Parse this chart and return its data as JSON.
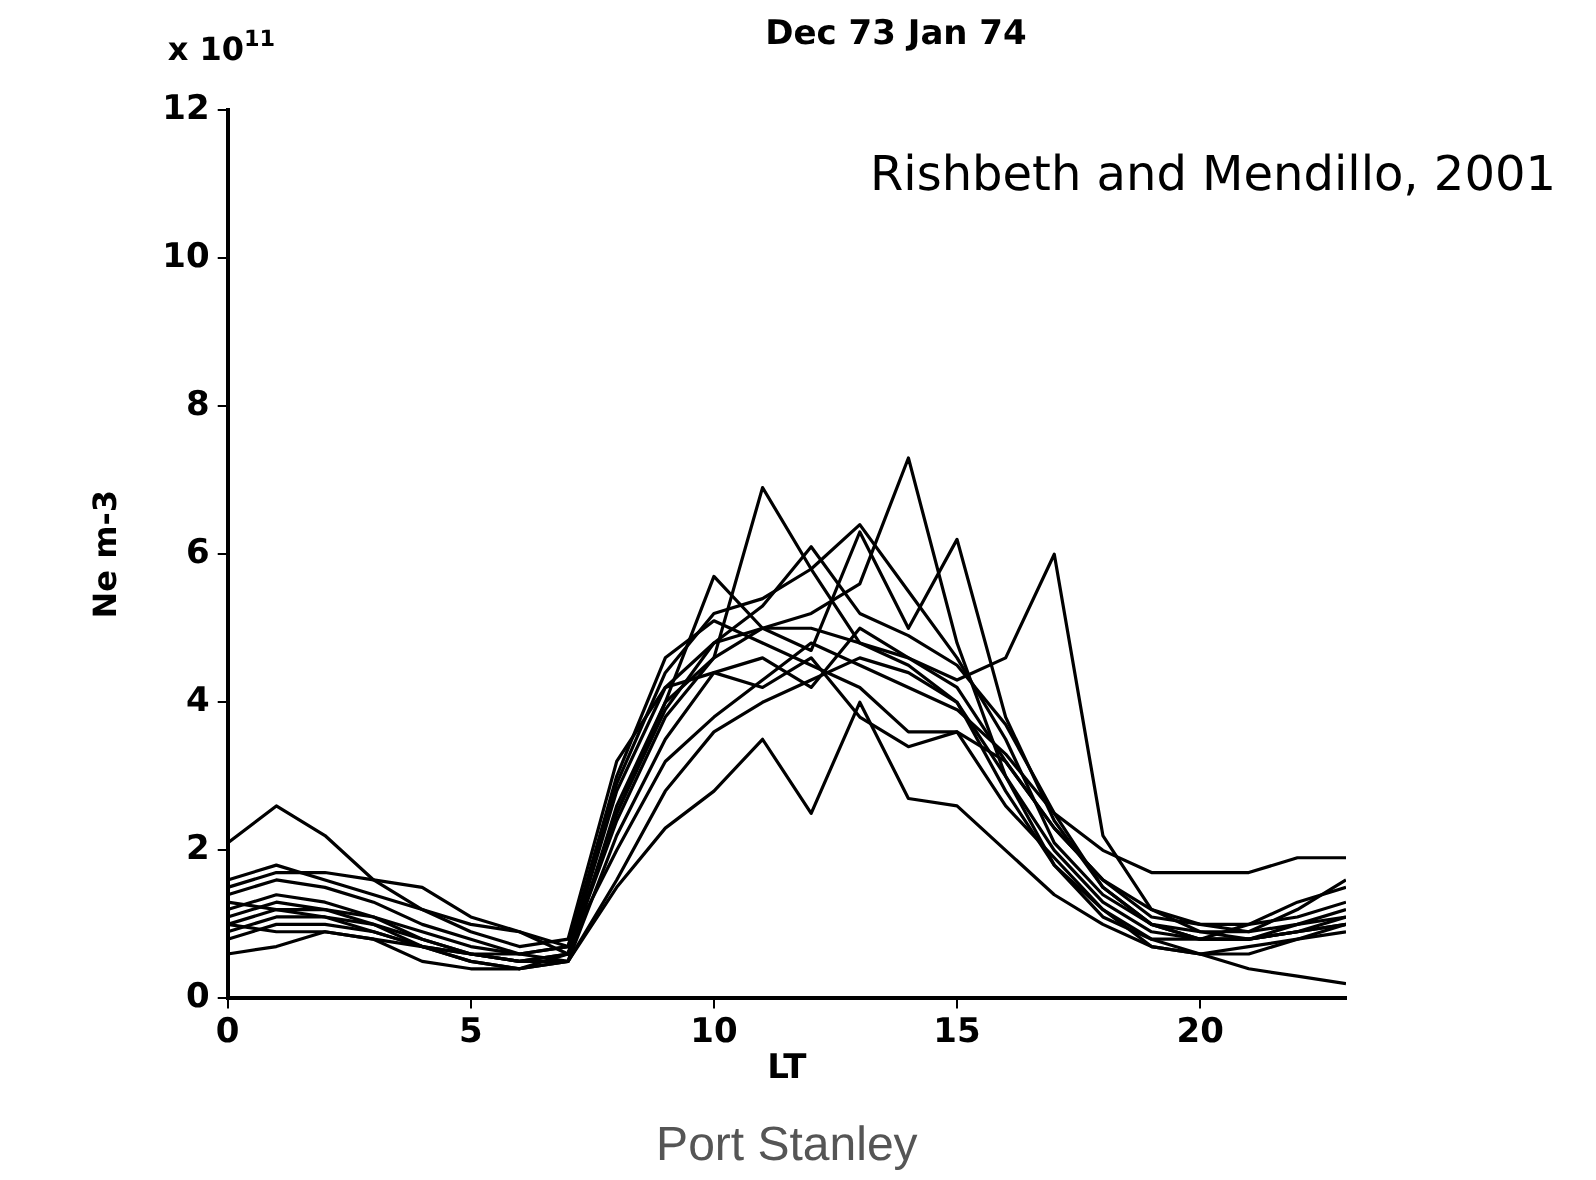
{
  "chart_data": {
    "type": "line",
    "title": "Dec 73 Jan 74",
    "xlabel": "LT",
    "ylabel": "Ne m-3",
    "annotations": [
      "x 10$^{11}$",
      "Rishbeth and Mendillo, 2001",
      "Port Stanley"
    ],
    "x": [
      0,
      1,
      2,
      3,
      4,
      5,
      6,
      7,
      8,
      9,
      10,
      11,
      12,
      13,
      14,
      15,
      16,
      17,
      18,
      19,
      20,
      21,
      22,
      23
    ],
    "xlim": [
      0,
      23
    ],
    "xticks": [
      0,
      5,
      10,
      15,
      20
    ],
    "ylim": [
      0,
      12
    ],
    "yticks": [
      0,
      2,
      4,
      6,
      8,
      10,
      12
    ],
    "grid": false,
    "legend": false,
    "marker": "none",
    "line_style": "solid",
    "series": [
      {
        "color": "#000000",
        "values": [
          2.1,
          2.6,
          2.2,
          1.6,
          1.2,
          1.0,
          0.9,
          0.6,
          2.5,
          4.0,
          4.6,
          6.9,
          5.8,
          4.8,
          4.6,
          4.2,
          3.2,
          2.3,
          1.6,
          1.2,
          1.0,
          0.9,
          1.0,
          1.2
        ]
      },
      {
        "color": "#000000",
        "values": [
          1.0,
          1.2,
          1.1,
          0.9,
          0.7,
          0.6,
          0.5,
          0.6,
          2.8,
          4.2,
          4.8,
          5.0,
          5.2,
          5.6,
          7.3,
          4.8,
          3.0,
          2.0,
          1.3,
          0.9,
          0.8,
          0.8,
          0.9,
          1.0
        ]
      },
      {
        "color": "#000000",
        "values": [
          1.4,
          1.6,
          1.5,
          1.3,
          1.0,
          0.8,
          0.6,
          0.5,
          2.2,
          3.5,
          4.4,
          4.6,
          4.2,
          5.0,
          4.6,
          4.3,
          4.6,
          6.0,
          2.2,
          1.2,
          0.9,
          0.8,
          0.9,
          1.1
        ]
      },
      {
        "color": "#000000",
        "values": [
          1.2,
          1.4,
          1.3,
          1.1,
          0.8,
          0.6,
          0.5,
          0.5,
          2.6,
          4.0,
          5.7,
          5.0,
          4.7,
          6.3,
          5.0,
          6.2,
          3.8,
          2.4,
          1.5,
          1.0,
          0.8,
          0.8,
          1.0,
          1.1
        ]
      },
      {
        "color": "#000000",
        "values": [
          0.8,
          1.0,
          1.0,
          0.9,
          0.7,
          0.5,
          0.4,
          0.5,
          1.5,
          2.3,
          2.8,
          3.5,
          2.5,
          4.0,
          2.7,
          2.6,
          2.0,
          1.4,
          1.0,
          0.7,
          0.6,
          0.6,
          0.8,
          0.9
        ]
      },
      {
        "color": "#000000",
        "values": [
          1.5,
          1.7,
          1.7,
          1.6,
          1.5,
          1.1,
          0.9,
          0.7,
          2.0,
          3.2,
          3.8,
          4.3,
          4.8,
          4.5,
          4.2,
          3.9,
          3.3,
          2.5,
          2.0,
          1.7,
          1.7,
          1.7,
          1.9,
          1.9
        ]
      },
      {
        "color": "#000000",
        "values": [
          1.1,
          1.3,
          1.2,
          1.0,
          0.7,
          0.5,
          0.4,
          0.6,
          2.4,
          3.8,
          4.6,
          5.0,
          5.0,
          4.8,
          4.5,
          4.0,
          2.8,
          1.8,
          1.1,
          0.8,
          0.6,
          0.4,
          0.3,
          0.2
        ]
      },
      {
        "color": "#000000",
        "values": [
          0.6,
          0.7,
          0.9,
          0.8,
          0.5,
          0.4,
          0.4,
          0.5,
          1.6,
          2.8,
          3.6,
          4.0,
          4.3,
          4.6,
          4.4,
          4.0,
          3.0,
          1.8,
          1.2,
          0.7,
          0.6,
          0.7,
          0.8,
          1.0
        ]
      },
      {
        "color": "#000000",
        "values": [
          1.3,
          1.2,
          1.2,
          1.1,
          0.9,
          0.7,
          0.6,
          0.7,
          2.9,
          4.4,
          5.2,
          5.4,
          5.8,
          6.4,
          5.5,
          4.6,
          3.5,
          2.1,
          1.4,
          1.0,
          0.9,
          0.9,
          1.2,
          1.6
        ]
      },
      {
        "color": "#000000",
        "values": [
          1.0,
          0.9,
          0.9,
          0.8,
          0.7,
          0.6,
          0.6,
          0.7,
          3.0,
          4.6,
          5.1,
          4.8,
          4.5,
          4.2,
          3.6,
          3.6,
          3.2,
          2.3,
          1.6,
          1.1,
          1.0,
          1.0,
          1.1,
          1.3
        ]
      },
      {
        "color": "#000000",
        "values": [
          1.6,
          1.8,
          1.6,
          1.4,
          1.2,
          0.9,
          0.7,
          0.8,
          3.2,
          4.2,
          4.4,
          4.2,
          4.6,
          3.8,
          3.4,
          3.6,
          2.6,
          1.9,
          1.2,
          0.8,
          0.8,
          1.0,
          1.3,
          1.5
        ]
      },
      {
        "color": "#000000",
        "values": [
          0.9,
          1.1,
          1.1,
          1.0,
          0.8,
          0.6,
          0.5,
          0.6,
          2.5,
          3.9,
          4.8,
          5.3,
          6.1,
          5.2,
          4.9,
          4.5,
          3.7,
          2.5,
          1.5,
          1.0,
          0.8,
          0.8,
          0.9,
          1.0
        ]
      }
    ]
  }
}
